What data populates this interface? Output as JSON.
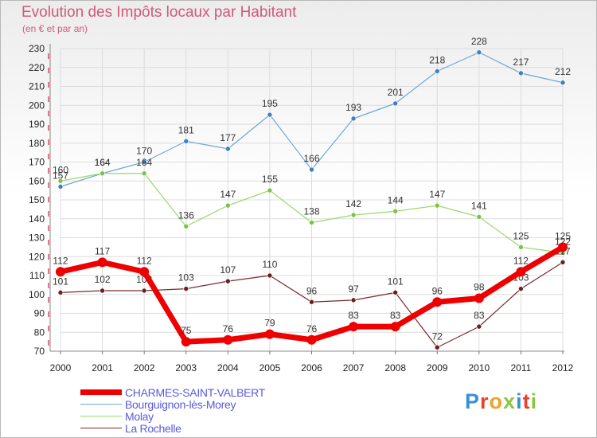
{
  "header": {
    "title": "Evolution des Impôts locaux par Habitant",
    "subtitle": "(en € et par an)"
  },
  "logo": {
    "text": "Proxiti",
    "colors": [
      "#3a8fd6",
      "#e8402a",
      "#f2a02c",
      "#8cc63f",
      "#3a8fd6",
      "#e8402a",
      "#8cc63f"
    ]
  },
  "chart_data": {
    "type": "line",
    "title": "Evolution des Impôts locaux par Habitant",
    "subtitle": "(en € et par an)",
    "x": [
      "2000",
      "2001",
      "2002",
      "2003",
      "2004",
      "2005",
      "2006",
      "2007",
      "2008",
      "2009",
      "2010",
      "2011",
      "2012"
    ],
    "ylim": [
      70,
      230
    ],
    "yticks": [
      70,
      80,
      90,
      100,
      110,
      120,
      130,
      140,
      150,
      160,
      170,
      180,
      190,
      200,
      210,
      220,
      230
    ],
    "grid": true,
    "legend_position": "bottom-left",
    "series": [
      {
        "name": "Bourguignon-lès-Morey",
        "color": "#6fa8d6",
        "marker": "#3f7fbf",
        "width": 1.2,
        "values": [
          157,
          164,
          170,
          181,
          177,
          195,
          166,
          193,
          201,
          218,
          228,
          217,
          212
        ]
      },
      {
        "name": "Molay",
        "color": "#99d96b",
        "marker": "#7cc24a",
        "width": 1.2,
        "values": [
          160,
          164,
          164,
          136,
          147,
          155,
          138,
          142,
          144,
          147,
          141,
          125,
          122
        ]
      },
      {
        "name": "La Rochelle",
        "color": "#7a2a2a",
        "marker": "#6b1f1f",
        "width": 1.2,
        "values": [
          101,
          102,
          102,
          103,
          107,
          110,
          96,
          97,
          101,
          72,
          83,
          103,
          117
        ]
      },
      {
        "name": "CHARMES-SAINT-VALBERT",
        "color": "#ee0000",
        "marker": "#ee0000",
        "width": 7,
        "values": [
          112,
          117,
          112,
          75,
          76,
          79,
          76,
          83,
          83,
          96,
          98,
          112,
          125
        ]
      }
    ],
    "legend_order": [
      "CHARMES-SAINT-VALBERT",
      "Bourguignon-lès-Morey",
      "Molay",
      "La Rochelle"
    ]
  }
}
